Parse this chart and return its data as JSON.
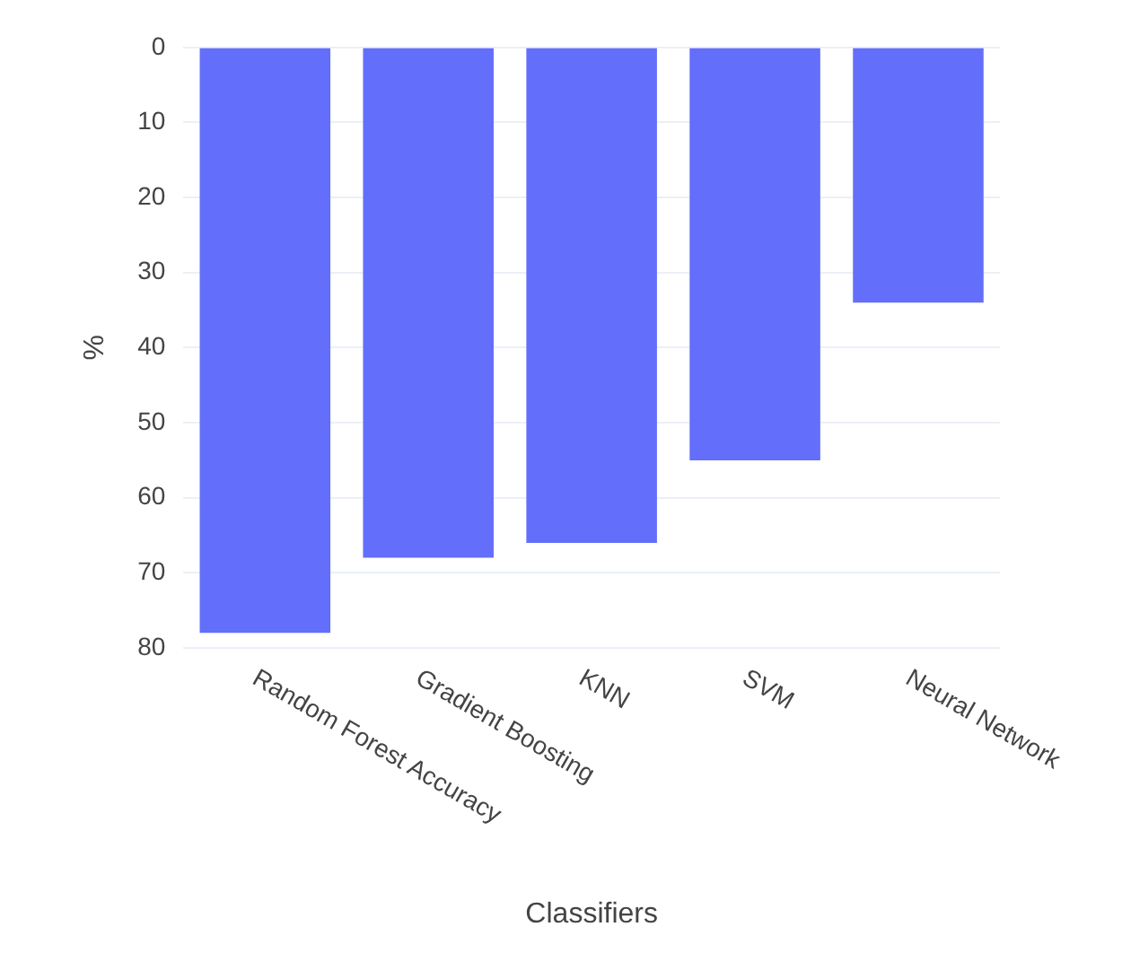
{
  "chart_data": {
    "type": "bar",
    "xlabel": "Classifiers",
    "ylabel": "%",
    "categories": [
      "Random Forest Accuracy",
      "Gradient Boosting",
      "KNN",
      "SVM",
      "Neural Network"
    ],
    "values": [
      78,
      68,
      66,
      55,
      34
    ],
    "color": "#636efa",
    "ylim": [
      80,
      0
    ],
    "yticks": [
      0,
      10,
      20,
      30,
      40,
      50,
      60,
      70,
      80
    ],
    "grid": "y",
    "legend": false
  }
}
